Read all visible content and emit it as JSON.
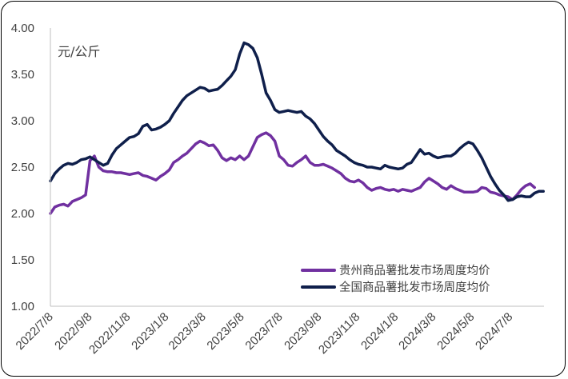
{
  "chart_data": {
    "type": "line",
    "unit_label": "元/公斤",
    "ylim": [
      1.0,
      4.0
    ],
    "yticks": [
      "1.00",
      "1.50",
      "2.00",
      "2.50",
      "3.00",
      "3.50",
      "4.00"
    ],
    "xtick_labels": [
      "2022/7/8",
      "2022/9/8",
      "2022/11/8",
      "2023/1/8",
      "2023/3/8",
      "2023/5/8",
      "2023/7/8",
      "2023/9/8",
      "2023/11/8",
      "2024/1/8",
      "2024/3/8",
      "2024/5/8",
      "2024/7/8"
    ],
    "x_range": [
      "2022-07-08",
      "2024-08-31"
    ],
    "grid": false,
    "legend_position": "bottom-right",
    "series": [
      {
        "name": "贵州商品薯批发市场周度均价",
        "color": "#7030A0",
        "points": [
          [
            "2022-07-08",
            2.0
          ],
          [
            "2022-07-15",
            2.07
          ],
          [
            "2022-07-22",
            2.09
          ],
          [
            "2022-07-29",
            2.1
          ],
          [
            "2022-08-05",
            2.08
          ],
          [
            "2022-08-12",
            2.13
          ],
          [
            "2022-08-19",
            2.15
          ],
          [
            "2022-08-26",
            2.17
          ],
          [
            "2022-09-02",
            2.2
          ],
          [
            "2022-09-09",
            2.57
          ],
          [
            "2022-09-16",
            2.62
          ],
          [
            "2022-09-23",
            2.5
          ],
          [
            "2022-09-30",
            2.46
          ],
          [
            "2022-10-07",
            2.45
          ],
          [
            "2022-10-14",
            2.45
          ],
          [
            "2022-10-21",
            2.44
          ],
          [
            "2022-10-28",
            2.44
          ],
          [
            "2022-11-04",
            2.43
          ],
          [
            "2022-11-11",
            2.42
          ],
          [
            "2022-11-18",
            2.43
          ],
          [
            "2022-11-25",
            2.44
          ],
          [
            "2022-12-02",
            2.41
          ],
          [
            "2022-12-09",
            2.4
          ],
          [
            "2022-12-16",
            2.38
          ],
          [
            "2022-12-23",
            2.36
          ],
          [
            "2022-12-30",
            2.4
          ],
          [
            "2023-01-06",
            2.43
          ],
          [
            "2023-01-13",
            2.47
          ],
          [
            "2023-01-20",
            2.55
          ],
          [
            "2023-01-27",
            2.58
          ],
          [
            "2023-02-03",
            2.62
          ],
          [
            "2023-02-10",
            2.65
          ],
          [
            "2023-02-17",
            2.7
          ],
          [
            "2023-02-24",
            2.75
          ],
          [
            "2023-03-03",
            2.78
          ],
          [
            "2023-03-10",
            2.76
          ],
          [
            "2023-03-17",
            2.73
          ],
          [
            "2023-03-24",
            2.74
          ],
          [
            "2023-03-31",
            2.68
          ],
          [
            "2023-04-07",
            2.6
          ],
          [
            "2023-04-14",
            2.57
          ],
          [
            "2023-04-21",
            2.6
          ],
          [
            "2023-04-28",
            2.58
          ],
          [
            "2023-05-05",
            2.62
          ],
          [
            "2023-05-12",
            2.58
          ],
          [
            "2023-05-19",
            2.62
          ],
          [
            "2023-05-26",
            2.72
          ],
          [
            "2023-06-02",
            2.82
          ],
          [
            "2023-06-09",
            2.85
          ],
          [
            "2023-06-16",
            2.87
          ],
          [
            "2023-06-23",
            2.84
          ],
          [
            "2023-06-30",
            2.78
          ],
          [
            "2023-07-07",
            2.62
          ],
          [
            "2023-07-14",
            2.58
          ],
          [
            "2023-07-21",
            2.52
          ],
          [
            "2023-07-28",
            2.51
          ],
          [
            "2023-08-04",
            2.55
          ],
          [
            "2023-08-11",
            2.58
          ],
          [
            "2023-08-18",
            2.62
          ],
          [
            "2023-08-25",
            2.55
          ],
          [
            "2023-09-01",
            2.52
          ],
          [
            "2023-09-08",
            2.52
          ],
          [
            "2023-09-15",
            2.53
          ],
          [
            "2023-09-22",
            2.51
          ],
          [
            "2023-09-29",
            2.49
          ],
          [
            "2023-10-06",
            2.46
          ],
          [
            "2023-10-13",
            2.43
          ],
          [
            "2023-10-20",
            2.38
          ],
          [
            "2023-10-27",
            2.35
          ],
          [
            "2023-11-03",
            2.34
          ],
          [
            "2023-11-10",
            2.36
          ],
          [
            "2023-11-17",
            2.33
          ],
          [
            "2023-11-24",
            2.28
          ],
          [
            "2023-12-01",
            2.25
          ],
          [
            "2023-12-08",
            2.27
          ],
          [
            "2023-12-15",
            2.28
          ],
          [
            "2023-12-22",
            2.26
          ],
          [
            "2023-12-29",
            2.25
          ],
          [
            "2024-01-05",
            2.26
          ],
          [
            "2024-01-12",
            2.24
          ],
          [
            "2024-01-19",
            2.26
          ],
          [
            "2024-01-26",
            2.25
          ],
          [
            "2024-02-02",
            2.24
          ],
          [
            "2024-02-09",
            2.26
          ],
          [
            "2024-02-16",
            2.28
          ],
          [
            "2024-02-23",
            2.34
          ],
          [
            "2024-03-01",
            2.38
          ],
          [
            "2024-03-08",
            2.35
          ],
          [
            "2024-03-15",
            2.32
          ],
          [
            "2024-03-22",
            2.28
          ],
          [
            "2024-03-29",
            2.26
          ],
          [
            "2024-04-05",
            2.3
          ],
          [
            "2024-04-12",
            2.27
          ],
          [
            "2024-04-19",
            2.25
          ],
          [
            "2024-04-26",
            2.23
          ],
          [
            "2024-05-03",
            2.23
          ],
          [
            "2024-05-10",
            2.23
          ],
          [
            "2024-05-17",
            2.24
          ],
          [
            "2024-05-24",
            2.28
          ],
          [
            "2024-05-31",
            2.27
          ],
          [
            "2024-06-07",
            2.23
          ],
          [
            "2024-06-14",
            2.22
          ],
          [
            "2024-06-21",
            2.2
          ],
          [
            "2024-06-28",
            2.19
          ],
          [
            "2024-07-05",
            2.18
          ],
          [
            "2024-07-12",
            2.15
          ],
          [
            "2024-07-19",
            2.2
          ],
          [
            "2024-07-26",
            2.26
          ],
          [
            "2024-08-02",
            2.3
          ],
          [
            "2024-08-09",
            2.32
          ],
          [
            "2024-08-16",
            2.28
          ]
        ]
      },
      {
        "name": "全国商品薯批发市场周度均价",
        "color": "#0F1F4B",
        "points": [
          [
            "2022-07-08",
            2.35
          ],
          [
            "2022-07-15",
            2.43
          ],
          [
            "2022-07-22",
            2.48
          ],
          [
            "2022-07-29",
            2.52
          ],
          [
            "2022-08-05",
            2.54
          ],
          [
            "2022-08-12",
            2.53
          ],
          [
            "2022-08-19",
            2.55
          ],
          [
            "2022-08-26",
            2.58
          ],
          [
            "2022-09-02",
            2.59
          ],
          [
            "2022-09-09",
            2.61
          ],
          [
            "2022-09-16",
            2.58
          ],
          [
            "2022-09-23",
            2.55
          ],
          [
            "2022-09-30",
            2.52
          ],
          [
            "2022-10-07",
            2.54
          ],
          [
            "2022-10-14",
            2.63
          ],
          [
            "2022-10-21",
            2.7
          ],
          [
            "2022-10-28",
            2.74
          ],
          [
            "2022-11-04",
            2.78
          ],
          [
            "2022-11-11",
            2.82
          ],
          [
            "2022-11-18",
            2.83
          ],
          [
            "2022-11-25",
            2.86
          ],
          [
            "2022-12-02",
            2.94
          ],
          [
            "2022-12-09",
            2.96
          ],
          [
            "2022-12-16",
            2.9
          ],
          [
            "2022-12-23",
            2.91
          ],
          [
            "2022-12-30",
            2.93
          ],
          [
            "2023-01-06",
            2.96
          ],
          [
            "2023-01-13",
            3.0
          ],
          [
            "2023-01-20",
            3.08
          ],
          [
            "2023-01-27",
            3.15
          ],
          [
            "2023-02-03",
            3.22
          ],
          [
            "2023-02-10",
            3.27
          ],
          [
            "2023-02-17",
            3.3
          ],
          [
            "2023-02-24",
            3.33
          ],
          [
            "2023-03-03",
            3.36
          ],
          [
            "2023-03-10",
            3.35
          ],
          [
            "2023-03-17",
            3.32
          ],
          [
            "2023-03-24",
            3.33
          ],
          [
            "2023-03-31",
            3.34
          ],
          [
            "2023-04-07",
            3.38
          ],
          [
            "2023-04-14",
            3.43
          ],
          [
            "2023-04-21",
            3.48
          ],
          [
            "2023-04-28",
            3.55
          ],
          [
            "2023-05-05",
            3.72
          ],
          [
            "2023-05-12",
            3.84
          ],
          [
            "2023-05-19",
            3.82
          ],
          [
            "2023-05-26",
            3.78
          ],
          [
            "2023-06-02",
            3.68
          ],
          [
            "2023-06-09",
            3.5
          ],
          [
            "2023-06-16",
            3.3
          ],
          [
            "2023-06-23",
            3.22
          ],
          [
            "2023-06-30",
            3.12
          ],
          [
            "2023-07-07",
            3.09
          ],
          [
            "2023-07-14",
            3.1
          ],
          [
            "2023-07-21",
            3.11
          ],
          [
            "2023-07-28",
            3.1
          ],
          [
            "2023-08-04",
            3.09
          ],
          [
            "2023-08-11",
            3.1
          ],
          [
            "2023-08-18",
            3.05
          ],
          [
            "2023-08-25",
            3.02
          ],
          [
            "2023-09-01",
            2.97
          ],
          [
            "2023-09-08",
            2.9
          ],
          [
            "2023-09-15",
            2.83
          ],
          [
            "2023-09-22",
            2.78
          ],
          [
            "2023-09-29",
            2.74
          ],
          [
            "2023-10-06",
            2.68
          ],
          [
            "2023-10-13",
            2.65
          ],
          [
            "2023-10-20",
            2.62
          ],
          [
            "2023-10-27",
            2.58
          ],
          [
            "2023-11-03",
            2.55
          ],
          [
            "2023-11-10",
            2.53
          ],
          [
            "2023-11-17",
            2.52
          ],
          [
            "2023-11-24",
            2.5
          ],
          [
            "2023-12-01",
            2.5
          ],
          [
            "2023-12-08",
            2.49
          ],
          [
            "2023-12-15",
            2.48
          ],
          [
            "2023-12-22",
            2.52
          ],
          [
            "2023-12-29",
            2.5
          ],
          [
            "2024-01-05",
            2.49
          ],
          [
            "2024-01-12",
            2.48
          ],
          [
            "2024-01-19",
            2.49
          ],
          [
            "2024-01-26",
            2.53
          ],
          [
            "2024-02-02",
            2.55
          ],
          [
            "2024-02-09",
            2.62
          ],
          [
            "2024-02-16",
            2.69
          ],
          [
            "2024-02-23",
            2.64
          ],
          [
            "2024-03-01",
            2.65
          ],
          [
            "2024-03-08",
            2.62
          ],
          [
            "2024-03-15",
            2.6
          ],
          [
            "2024-03-22",
            2.61
          ],
          [
            "2024-03-29",
            2.62
          ],
          [
            "2024-04-05",
            2.62
          ],
          [
            "2024-04-12",
            2.65
          ],
          [
            "2024-04-19",
            2.7
          ],
          [
            "2024-04-26",
            2.74
          ],
          [
            "2024-05-03",
            2.77
          ],
          [
            "2024-05-10",
            2.75
          ],
          [
            "2024-05-17",
            2.68
          ],
          [
            "2024-05-24",
            2.6
          ],
          [
            "2024-05-31",
            2.5
          ],
          [
            "2024-06-07",
            2.4
          ],
          [
            "2024-06-14",
            2.32
          ],
          [
            "2024-06-21",
            2.25
          ],
          [
            "2024-06-28",
            2.2
          ],
          [
            "2024-07-05",
            2.14
          ],
          [
            "2024-07-12",
            2.15
          ],
          [
            "2024-07-19",
            2.18
          ],
          [
            "2024-07-26",
            2.19
          ],
          [
            "2024-08-02",
            2.18
          ],
          [
            "2024-08-09",
            2.18
          ],
          [
            "2024-08-16",
            2.22
          ],
          [
            "2024-08-23",
            2.24
          ],
          [
            "2024-08-30",
            2.24
          ]
        ]
      }
    ]
  }
}
